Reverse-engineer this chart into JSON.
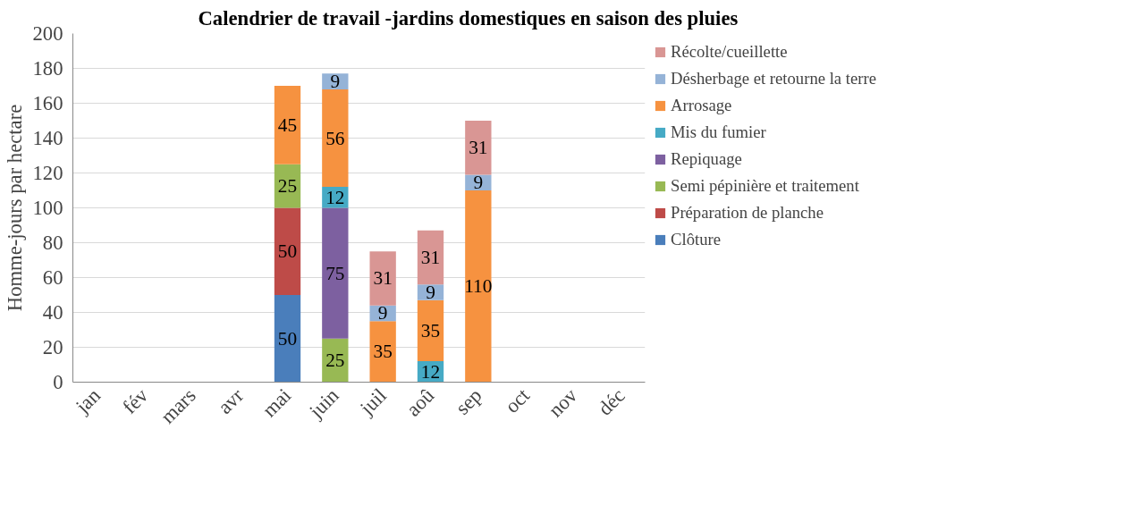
{
  "chart_data": {
    "type": "bar",
    "stacked": true,
    "title": "Calendrier de travail -jardins domestiques en saison des pluies",
    "ylabel": "Homme-jours par hectare",
    "categories": [
      "jan",
      "fév",
      "mars",
      "avr",
      "mai",
      "juin",
      "juil",
      "aoû",
      "sep",
      "oct",
      "nov",
      "déc"
    ],
    "series": [
      {
        "name": "Clôture",
        "color": "#4a7ebb",
        "values": [
          null,
          null,
          null,
          null,
          50,
          null,
          null,
          null,
          null,
          null,
          null,
          null
        ]
      },
      {
        "name": "Préparation de planche",
        "color": "#be4b48",
        "values": [
          null,
          null,
          null,
          null,
          50,
          null,
          null,
          null,
          null,
          null,
          null,
          null
        ]
      },
      {
        "name": "Semi pépinière et traitement",
        "color": "#98b954",
        "values": [
          null,
          null,
          null,
          null,
          25,
          25,
          null,
          null,
          null,
          null,
          null,
          null
        ]
      },
      {
        "name": "Repiquage",
        "color": "#7d60a0",
        "values": [
          null,
          null,
          null,
          null,
          null,
          75,
          null,
          null,
          null,
          null,
          null,
          null
        ]
      },
      {
        "name": "Mis du fumier",
        "color": "#46aac5",
        "values": [
          null,
          null,
          null,
          null,
          null,
          12,
          null,
          12,
          null,
          null,
          null,
          null
        ]
      },
      {
        "name": "Arrosage",
        "color": "#f69240",
        "values": [
          null,
          null,
          null,
          null,
          45,
          56,
          35,
          35,
          110,
          null,
          null,
          null
        ]
      },
      {
        "name": "Désherbage et retourne la terre",
        "color": "#95b3d7",
        "values": [
          null,
          null,
          null,
          null,
          null,
          9,
          9,
          9,
          9,
          null,
          null,
          null
        ]
      },
      {
        "name": "Récolte/cueillette",
        "color": "#d99694",
        "values": [
          null,
          null,
          null,
          null,
          null,
          null,
          31,
          31,
          31,
          null,
          null,
          null
        ]
      }
    ],
    "ylim": [
      0,
      200
    ],
    "yticks": [
      0,
      20,
      40,
      60,
      80,
      100,
      120,
      140,
      160,
      180,
      200
    ],
    "grid": "y",
    "legend": "right",
    "data_labels": true
  }
}
